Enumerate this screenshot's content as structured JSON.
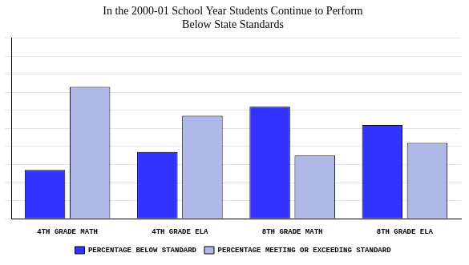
{
  "chart_data": {
    "type": "bar",
    "title": "In the 2000-01 School Year Students Continue to Perform\nBelow State Standards",
    "categories": [
      "4TH GRADE MATH",
      "4TH GRADE ELA",
      "8TH GRADE MATH",
      "8TH GRADE ELA"
    ],
    "series": [
      {
        "name": "PERCENTAGE BELOW STANDARD",
        "color": "#3333ff",
        "values": [
          27,
          37,
          62,
          52
        ]
      },
      {
        "name": "PERCENTAGE MEETING OR EXCEEDING STANDARD",
        "color": "#b0b8e8",
        "values": [
          73,
          57,
          35,
          42
        ]
      }
    ],
    "ylim": [
      0,
      100
    ],
    "yticks": [
      0,
      10,
      20,
      30,
      40,
      50,
      60,
      70,
      80,
      90,
      100
    ],
    "grid": true,
    "legend": "bottom",
    "tick_labels": "x"
  }
}
